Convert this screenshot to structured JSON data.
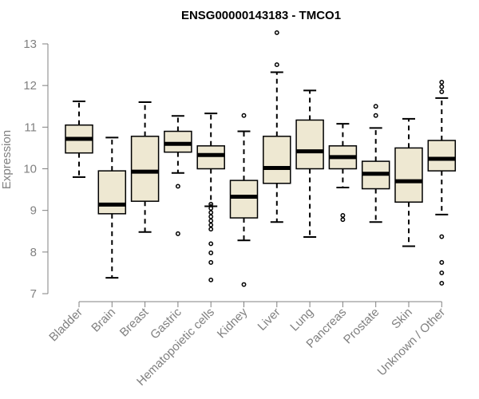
{
  "chart_data": {
    "type": "box",
    "title": "ENSG00000143183 - TMCO1",
    "xlabel": "",
    "ylabel": "Expression",
    "ylim": [
      7,
      13
    ],
    "yticks": [
      7,
      8,
      9,
      10,
      11,
      12,
      13
    ],
    "grid": false,
    "colors": {
      "box_fill": "#EEE8D2",
      "box_stroke": "#000000",
      "median": "#000000",
      "axis": "#808080",
      "tick_text": "#808080",
      "title_text": "#000000"
    },
    "categories": [
      "Bladder",
      "Brain",
      "Breast",
      "Gastric",
      "Hematopoietic cells",
      "Kidney",
      "Liver",
      "Lung",
      "Pancreas",
      "Prostate",
      "Skin",
      "Unknown / Other"
    ],
    "boxes": [
      {
        "name": "Bladder",
        "whisker_low": 9.8,
        "q1": 10.38,
        "median": 10.72,
        "q3": 11.05,
        "whisker_high": 11.62,
        "outliers": []
      },
      {
        "name": "Brain",
        "whisker_low": 7.38,
        "q1": 8.92,
        "median": 9.14,
        "q3": 9.95,
        "whisker_high": 10.75,
        "outliers": []
      },
      {
        "name": "Breast",
        "whisker_low": 8.48,
        "q1": 9.22,
        "median": 9.93,
        "q3": 10.78,
        "whisker_high": 11.6,
        "outliers": []
      },
      {
        "name": "Gastric",
        "whisker_low": 9.9,
        "q1": 10.4,
        "median": 10.6,
        "q3": 10.9,
        "whisker_high": 11.27,
        "outliers": [
          9.58,
          8.44
        ]
      },
      {
        "name": "Hematopoietic cells",
        "whisker_low": 9.1,
        "q1": 10.0,
        "median": 10.33,
        "q3": 10.55,
        "whisker_high": 11.33,
        "outliers": [
          9.15,
          9.05,
          8.95,
          8.85,
          8.75,
          8.65,
          8.55,
          8.2,
          7.98,
          7.75,
          7.33
        ]
      },
      {
        "name": "Kidney",
        "whisker_low": 8.28,
        "q1": 8.82,
        "median": 9.33,
        "q3": 9.72,
        "whisker_high": 10.9,
        "outliers": [
          11.28,
          7.22
        ]
      },
      {
        "name": "Liver",
        "whisker_low": 8.72,
        "q1": 9.65,
        "median": 10.02,
        "q3": 10.78,
        "whisker_high": 12.32,
        "outliers": [
          12.5,
          13.27
        ]
      },
      {
        "name": "Lung",
        "whisker_low": 8.36,
        "q1": 10.0,
        "median": 10.42,
        "q3": 11.17,
        "whisker_high": 11.88,
        "outliers": []
      },
      {
        "name": "Pancreas",
        "whisker_low": 9.55,
        "q1": 10.0,
        "median": 10.28,
        "q3": 10.55,
        "whisker_high": 11.08,
        "outliers": [
          8.88,
          8.78
        ]
      },
      {
        "name": "Prostate",
        "whisker_low": 8.72,
        "q1": 9.52,
        "median": 9.88,
        "q3": 10.18,
        "whisker_high": 10.98,
        "outliers": [
          11.28,
          11.5
        ]
      },
      {
        "name": "Skin",
        "whisker_low": 8.14,
        "q1": 9.2,
        "median": 9.7,
        "q3": 10.5,
        "whisker_high": 11.2,
        "outliers": []
      },
      {
        "name": "Unknown / Other",
        "whisker_low": 8.9,
        "q1": 9.95,
        "median": 10.24,
        "q3": 10.68,
        "whisker_high": 11.7,
        "outliers": [
          11.85,
          11.97,
          12.08,
          8.37,
          7.75,
          7.5,
          7.25
        ]
      }
    ]
  }
}
